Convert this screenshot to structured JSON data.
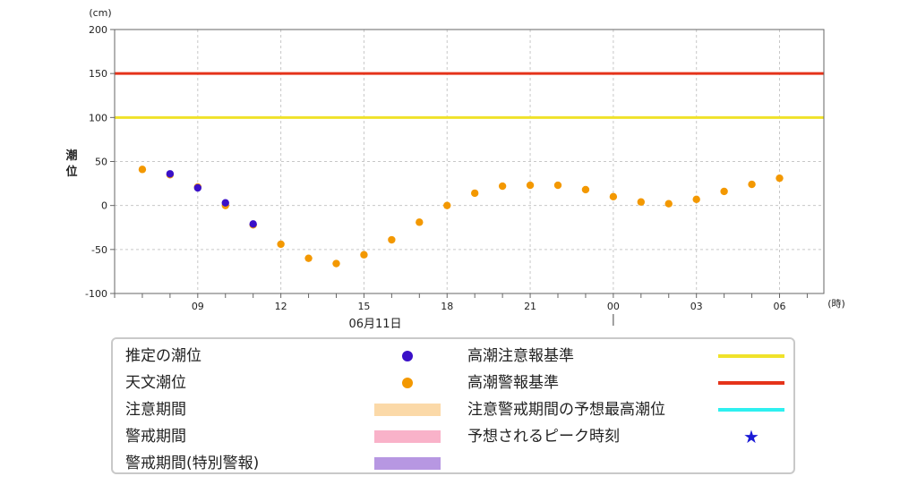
{
  "chart_data": {
    "type": "scatter",
    "y_unit": "(cm)",
    "x_unit": "(時)",
    "ylabel": "潮位",
    "date_label": "06月11日",
    "ylim": [
      -100,
      200
    ],
    "y_ticks": [
      200,
      150,
      100,
      50,
      0,
      -50,
      -100
    ],
    "y_tick_labels": [
      "200",
      "150",
      "100",
      "50",
      "0",
      "-50",
      "-100"
    ],
    "x_hours_range": [
      6,
      31.6
    ],
    "x_ticks": [
      {
        "hour": 9,
        "label": "09"
      },
      {
        "hour": 12,
        "label": "12"
      },
      {
        "hour": 15,
        "label": "15"
      },
      {
        "hour": 18,
        "label": "18"
      },
      {
        "hour": 21,
        "label": "21"
      },
      {
        "hour": 24,
        "label": "00"
      },
      {
        "hour": 27,
        "label": "03"
      },
      {
        "hour": 30,
        "label": "06"
      }
    ],
    "grid": true,
    "reference_lines": [
      {
        "name": "高潮警報基準",
        "value": 150,
        "color": "#e5331a"
      },
      {
        "name": "高潮注意報基準",
        "value": 100,
        "color": "#f0e22a"
      }
    ],
    "series": [
      {
        "name": "天文潮位",
        "color": "#f39800",
        "points": [
          {
            "hour": 7,
            "value": 41
          },
          {
            "hour": 8,
            "value": 35
          },
          {
            "hour": 9,
            "value": 21
          },
          {
            "hour": 10,
            "value": 0
          },
          {
            "hour": 11,
            "value": -22
          },
          {
            "hour": 12,
            "value": -44
          },
          {
            "hour": 13,
            "value": -60
          },
          {
            "hour": 14,
            "value": -66
          },
          {
            "hour": 15,
            "value": -56
          },
          {
            "hour": 16,
            "value": -39
          },
          {
            "hour": 17,
            "value": -19
          },
          {
            "hour": 18,
            "value": 0
          },
          {
            "hour": 19,
            "value": 14
          },
          {
            "hour": 20,
            "value": 22
          },
          {
            "hour": 21,
            "value": 23
          },
          {
            "hour": 22,
            "value": 23
          },
          {
            "hour": 23,
            "value": 18
          },
          {
            "hour": 24,
            "value": 10
          },
          {
            "hour": 25,
            "value": 4
          },
          {
            "hour": 26,
            "value": 2
          },
          {
            "hour": 27,
            "value": 7
          },
          {
            "hour": 28,
            "value": 16
          },
          {
            "hour": 29,
            "value": 24
          },
          {
            "hour": 30,
            "value": 31
          }
        ]
      },
      {
        "name": "推定の潮位",
        "color": "#3a10c8",
        "points": [
          {
            "hour": 8,
            "value": 36
          },
          {
            "hour": 9,
            "value": 20
          },
          {
            "hour": 10,
            "value": 3
          },
          {
            "hour": 11,
            "value": -21
          }
        ]
      }
    ]
  },
  "legend": {
    "items": [
      {
        "label": "推定の潮位",
        "kind": "dot",
        "color": "#3a10c8"
      },
      {
        "label": "天文潮位",
        "kind": "dot",
        "color": "#f39800"
      },
      {
        "label": "注意期間",
        "kind": "band",
        "color": "#fbd9a8"
      },
      {
        "label": "警戒期間",
        "kind": "band",
        "color": "#f9b2c9"
      },
      {
        "label": "警戒期間(特別警報)",
        "kind": "band",
        "color": "#b797e2"
      },
      {
        "label": "高潮注意報基準",
        "kind": "line",
        "color": "#f0e22a"
      },
      {
        "label": "高潮警報基準",
        "kind": "line",
        "color": "#e5331a"
      },
      {
        "label": "注意警戒期間の予想最高潮位",
        "kind": "line",
        "color": "#2ef0f0"
      },
      {
        "label": "予想されるピーク時刻",
        "kind": "star",
        "color": "#1a1ad6"
      }
    ]
  }
}
